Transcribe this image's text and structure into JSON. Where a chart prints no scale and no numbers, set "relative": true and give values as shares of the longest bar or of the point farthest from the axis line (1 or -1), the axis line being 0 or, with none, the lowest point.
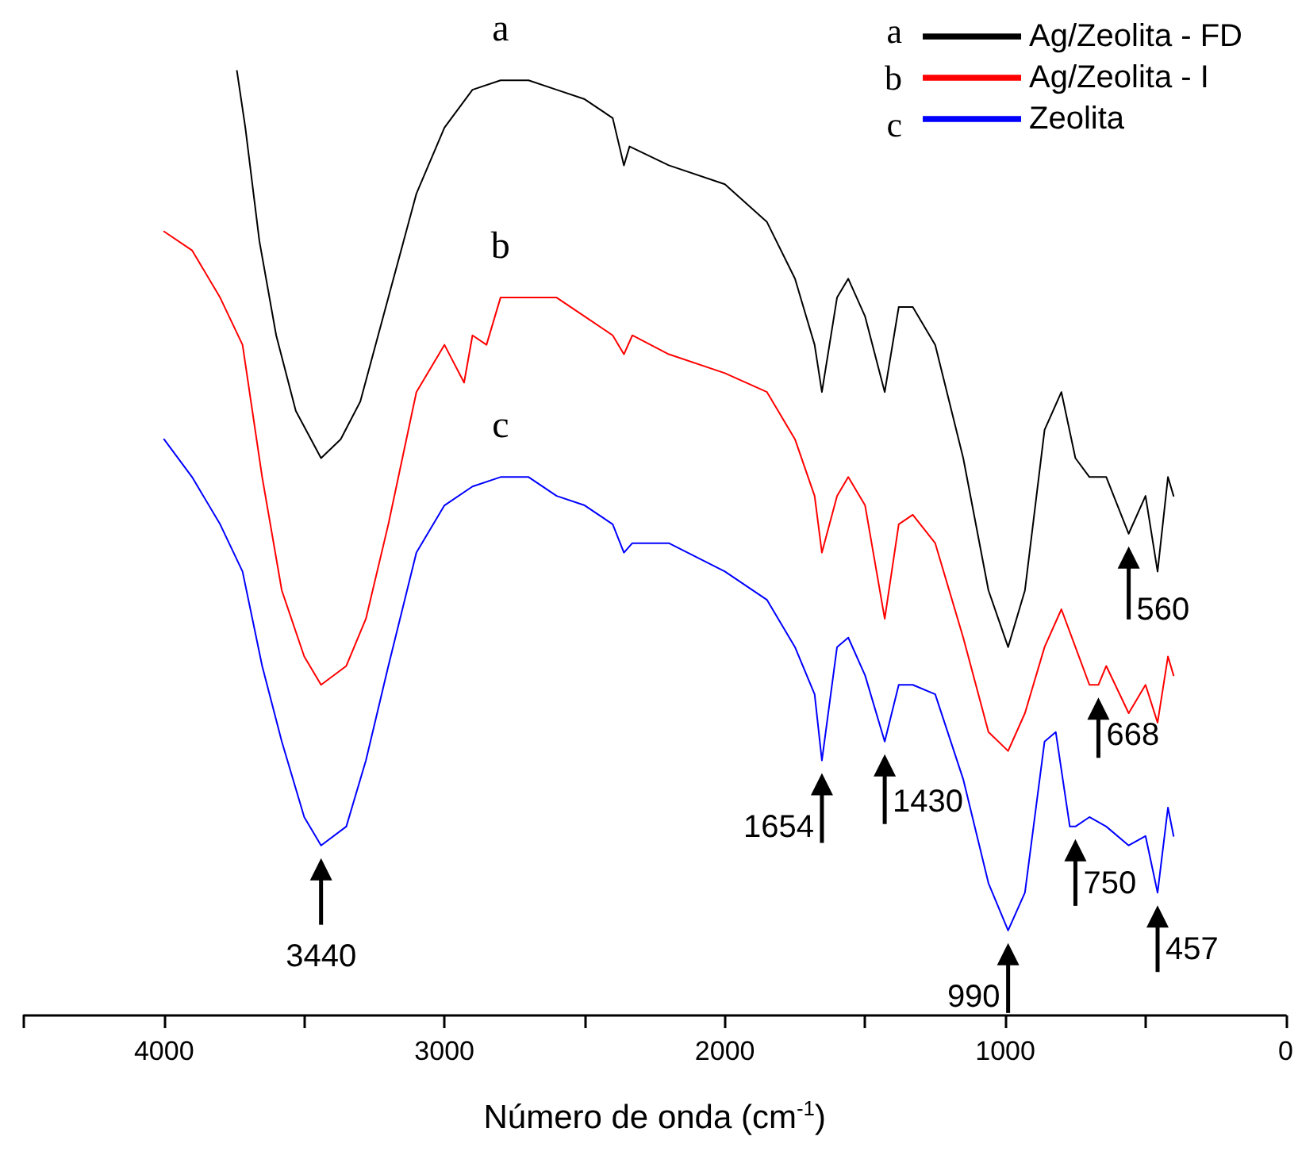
{
  "chart_data": {
    "type": "line",
    "relative": true,
    "xlabel": "Número de onda (cm$^{-1}$)",
    "xlim": [
      4500,
      0
    ],
    "xticks": [
      {
        "value": 4500,
        "label": null
      },
      4000,
      {
        "value": 3500,
        "label": null
      },
      3000,
      {
        "value": 2500,
        "label": null
      },
      2000,
      {
        "value": 1500,
        "label": null
      },
      1000,
      {
        "value": 500,
        "label": null
      },
      0
    ],
    "grid": false,
    "legend": "top right",
    "marker": "none",
    "line_style": "solid",
    "series": [
      {
        "name": "Ag/Zeolita - FD",
        "color": "#000000",
        "x": [
          3740,
          3710,
          3660,
          3600,
          3530,
          3440,
          3370,
          3300,
          3200,
          3100,
          3000,
          2900,
          2800,
          2700,
          2600,
          2500,
          2400,
          2360,
          2340,
          2200,
          2000,
          1850,
          1750,
          1680,
          1654,
          1600,
          1560,
          1500,
          1430,
          1380,
          1330,
          1250,
          1150,
          1060,
          990,
          930,
          860,
          800,
          750,
          700,
          640,
          560,
          500,
          457,
          420,
          400
        ],
        "values": [
          1.0,
          0.94,
          0.82,
          0.72,
          0.64,
          0.59,
          0.61,
          0.65,
          0.76,
          0.87,
          0.94,
          0.98,
          0.99,
          0.99,
          0.98,
          0.97,
          0.95,
          0.9,
          0.92,
          0.9,
          0.88,
          0.84,
          0.78,
          0.71,
          0.66,
          0.76,
          0.78,
          0.74,
          0.66,
          0.75,
          0.75,
          0.71,
          0.59,
          0.45,
          0.39,
          0.45,
          0.62,
          0.66,
          0.59,
          0.57,
          0.57,
          0.51,
          0.55,
          0.47,
          0.57,
          0.55
        ]
      },
      {
        "name": "Ag/Zeolita - I",
        "color": "#ff0000",
        "x": [
          4000,
          3900,
          3800,
          3720,
          3650,
          3580,
          3500,
          3440,
          3350,
          3280,
          3200,
          3100,
          3000,
          2930,
          2900,
          2850,
          2800,
          2700,
          2600,
          2500,
          2400,
          2360,
          2330,
          2200,
          2000,
          1850,
          1750,
          1680,
          1654,
          1600,
          1560,
          1500,
          1430,
          1380,
          1330,
          1250,
          1150,
          1060,
          990,
          930,
          860,
          800,
          750,
          700,
          668,
          640,
          560,
          500,
          457,
          420,
          400
        ],
        "values": [
          0.83,
          0.81,
          0.76,
          0.71,
          0.57,
          0.45,
          0.38,
          0.35,
          0.37,
          0.42,
          0.52,
          0.66,
          0.71,
          0.67,
          0.72,
          0.71,
          0.76,
          0.76,
          0.76,
          0.74,
          0.72,
          0.7,
          0.72,
          0.7,
          0.68,
          0.66,
          0.61,
          0.55,
          0.49,
          0.55,
          0.57,
          0.54,
          0.42,
          0.52,
          0.53,
          0.5,
          0.4,
          0.3,
          0.28,
          0.32,
          0.39,
          0.43,
          0.39,
          0.35,
          0.35,
          0.37,
          0.32,
          0.35,
          0.31,
          0.38,
          0.36
        ]
      },
      {
        "name": "Zeolita",
        "color": "#0000ff",
        "x": [
          4000,
          3900,
          3800,
          3720,
          3650,
          3580,
          3500,
          3440,
          3350,
          3280,
          3200,
          3100,
          3000,
          2900,
          2800,
          2700,
          2600,
          2500,
          2400,
          2360,
          2330,
          2200,
          2000,
          1850,
          1750,
          1680,
          1654,
          1600,
          1560,
          1500,
          1430,
          1380,
          1330,
          1250,
          1150,
          1060,
          990,
          930,
          860,
          820,
          770,
          750,
          700,
          640,
          560,
          500,
          457,
          420,
          400
        ],
        "values": [
          0.61,
          0.57,
          0.52,
          0.47,
          0.37,
          0.29,
          0.21,
          0.18,
          0.2,
          0.27,
          0.37,
          0.49,
          0.54,
          0.56,
          0.57,
          0.57,
          0.55,
          0.54,
          0.52,
          0.49,
          0.5,
          0.5,
          0.47,
          0.44,
          0.39,
          0.34,
          0.27,
          0.39,
          0.4,
          0.36,
          0.29,
          0.35,
          0.35,
          0.34,
          0.25,
          0.14,
          0.09,
          0.13,
          0.29,
          0.3,
          0.2,
          0.2,
          0.21,
          0.2,
          0.18,
          0.19,
          0.13,
          0.22,
          0.19
        ]
      }
    ],
    "annotations": [
      "a",
      "b",
      "c",
      {
        "text": "3440",
        "x": 3440,
        "y": 0.18
      },
      {
        "text": "1654",
        "x": 1654,
        "y": 0.27
      },
      {
        "text": "1430",
        "x": 1430,
        "y": 0.29
      },
      {
        "text": "990",
        "x": 990,
        "y": 0.09
      },
      {
        "text": "750",
        "x": 750,
        "y": 0.2
      },
      {
        "text": "668",
        "x": 668,
        "y": 0.35
      },
      {
        "text": "560",
        "x": 560,
        "y": 0.51
      },
      {
        "text": "457",
        "x": 457,
        "y": 0.13
      }
    ]
  }
}
